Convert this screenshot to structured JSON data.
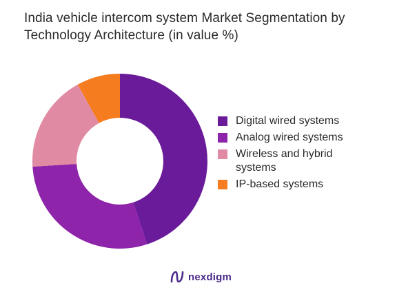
{
  "title": "India vehicle intercom system Market Segmentation by Technology Architecture (in value %)",
  "logo": {
    "text": "nexdigm"
  },
  "chart_data": {
    "type": "pie",
    "variant": "donut",
    "title": "India vehicle intercom system Market Segmentation by Technology Architecture (in value %)",
    "legend_position": "right",
    "slices": [
      {
        "label": "Digital wired systems",
        "value": 45,
        "color": "#6a1b9a"
      },
      {
        "label": "Analog wired systems",
        "value": 29,
        "color": "#8e24aa"
      },
      {
        "label": "Wireless and hybrid systems",
        "value": 18,
        "color": "#e08ba3"
      },
      {
        "label": "IP-based systems",
        "value": 8,
        "color": "#f57c1f"
      }
    ]
  }
}
